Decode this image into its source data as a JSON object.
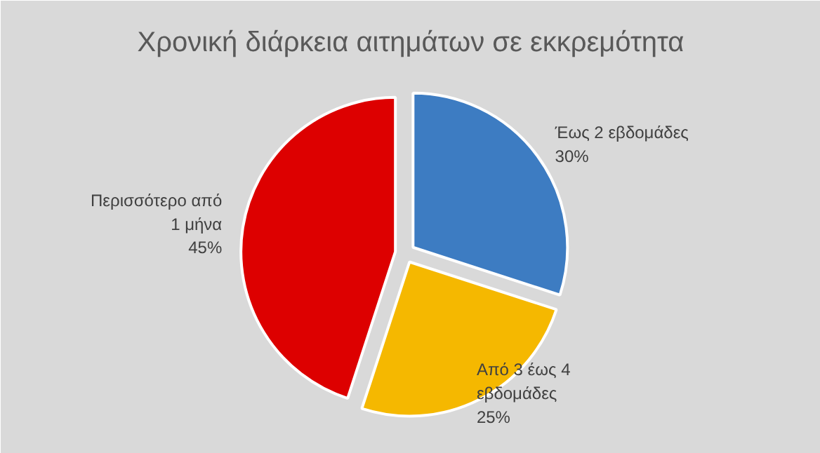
{
  "chart_data": {
    "type": "pie",
    "title": "Χρονική διάρκεια αιτημάτων σε εκκρεμότητα",
    "categories": [
      "Έως 2 εβδομάδες",
      "Από 3 έως 4 εβδομάδες",
      "Περισσότερο από 1 μήνα"
    ],
    "values": [
      30,
      25,
      45
    ],
    "colors": [
      "#3d7cc2",
      "#f5b800",
      "#dd0000"
    ],
    "value_labels": [
      "30%",
      "25%",
      "45%"
    ]
  }
}
